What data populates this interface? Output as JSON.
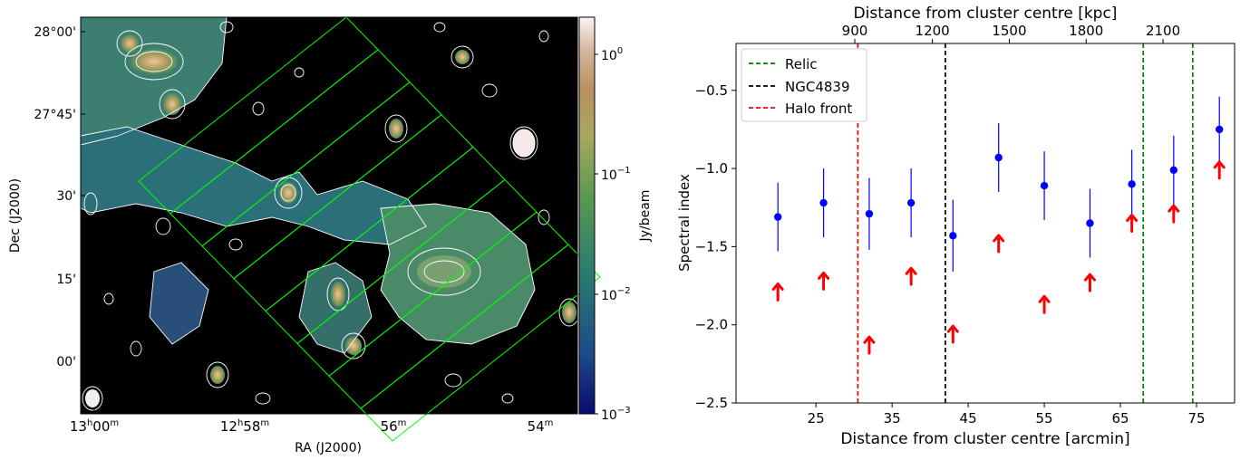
{
  "figure": {
    "left_panel": {
      "type": "radio image with contours",
      "xlabel": "RA (J2000)",
      "ylabel": "Dec (J2000)",
      "ra_ticks": [
        {
          "main": "13",
          "sup1": "h",
          "mid": "00",
          "sup2": "m"
        },
        {
          "main": "12",
          "sup1": "h",
          "mid": "58",
          "sup2": "m"
        },
        {
          "main": "",
          "sup1": "",
          "mid": "56",
          "sup2": "m"
        },
        {
          "main": "",
          "sup1": "",
          "mid": "54",
          "sup2": "m"
        }
      ],
      "dec_ticks": [
        "28°00'",
        "27°45'",
        "30'",
        "15'",
        "00'"
      ],
      "colorbar": {
        "label": "Jy/beam",
        "scale": "log",
        "range": [
          0.001,
          2
        ],
        "tick_base": "10",
        "tick_exponents": [
          "0",
          "−1",
          "−2",
          "−3"
        ],
        "colormap": "gist_earth"
      },
      "contour_color": "#ffffff",
      "region_color": "#00ff00",
      "strips": 8
    }
  },
  "chart_data": {
    "type": "scatter",
    "xlabel": "Distance from cluster centre [arcmin]",
    "ylabel": "Spectral index",
    "top_xlabel": "Distance from cluster centre [kpc]",
    "xlim": [
      14.5,
      80
    ],
    "ylim": [
      -2.5,
      -0.2
    ],
    "x_ticks": [
      25,
      35,
      45,
      55,
      65,
      75
    ],
    "y_ticks": [
      -2.5,
      -2.0,
      -1.5,
      -1.0,
      -0.5
    ],
    "y_tick_labels": [
      "−2.5",
      "−2.0",
      "−1.5",
      "−1.0",
      "−0.5"
    ],
    "top_ticks_kpc": [
      900,
      1200,
      1500,
      1800,
      2100
    ],
    "top_ticks_arcmin": [
      30.1,
      40.3,
      50.4,
      60.5,
      70.6
    ],
    "series": [
      {
        "marker": "point",
        "color": "#0000ff",
        "x": [
          20,
          26,
          32,
          37.5,
          43,
          49,
          55,
          61,
          66.5,
          72,
          78
        ],
        "y": [
          -1.31,
          -1.22,
          -1.29,
          -1.22,
          -1.43,
          -0.93,
          -1.11,
          -1.35,
          -1.1,
          -1.01,
          -0.75
        ],
        "yerr": [
          0.22,
          0.22,
          0.23,
          0.22,
          0.23,
          0.22,
          0.22,
          0.22,
          0.22,
          0.22,
          0.21
        ]
      },
      {
        "marker": "lower-limit-arrow",
        "color": "#ff0000",
        "x": [
          20,
          26,
          32,
          37.5,
          43,
          49,
          55,
          61,
          66.5,
          72,
          78
        ],
        "y": [
          -1.79,
          -1.72,
          -2.13,
          -1.69,
          -2.06,
          -1.48,
          -1.87,
          -1.73,
          -1.35,
          -1.29,
          -1.01
        ]
      }
    ],
    "vlines": [
      {
        "label": "Relic",
        "x": 68,
        "color": "#008000"
      },
      {
        "label": "Relic",
        "x": 74.5,
        "color": "#008000"
      },
      {
        "label": "NGC4839",
        "x": 42,
        "color": "#000000"
      },
      {
        "label": "Halo front",
        "x": 30.5,
        "color": "#ff0000"
      }
    ],
    "legend": {
      "placement": "upper left",
      "entries": [
        {
          "label": "Relic",
          "color": "#008000"
        },
        {
          "label": "NGC4839",
          "color": "#000000"
        },
        {
          "label": "Halo front",
          "color": "#ff0000"
        }
      ]
    }
  }
}
